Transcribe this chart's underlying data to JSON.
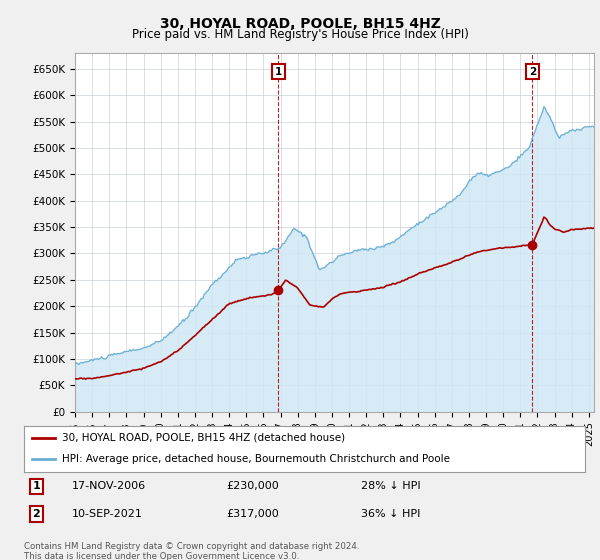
{
  "title": "30, HOYAL ROAD, POOLE, BH15 4HZ",
  "subtitle": "Price paid vs. HM Land Registry's House Price Index (HPI)",
  "ylabel_ticks": [
    "£0",
    "£50K",
    "£100K",
    "£150K",
    "£200K",
    "£250K",
    "£300K",
    "£350K",
    "£400K",
    "£450K",
    "£500K",
    "£550K",
    "£600K",
    "£650K"
  ],
  "ylim": [
    0,
    680000
  ],
  "ytick_values": [
    0,
    50000,
    100000,
    150000,
    200000,
    250000,
    300000,
    350000,
    400000,
    450000,
    500000,
    550000,
    600000,
    650000
  ],
  "hpi_color": "#6aaed6",
  "hpi_fill_color": "#d0e8f5",
  "price_color": "#aa0000",
  "sale1_price": 230000,
  "sale2_price": 317000,
  "sale1_date_str": "17-NOV-2006",
  "sale2_date_str": "10-SEP-2021",
  "sale1_hpi_pct": "28% ↓ HPI",
  "sale2_hpi_pct": "36% ↓ HPI",
  "legend_line1": "30, HOYAL ROAD, POOLE, BH15 4HZ (detached house)",
  "legend_line2": "HPI: Average price, detached house, Bournemouth Christchurch and Poole",
  "footer": "Contains HM Land Registry data © Crown copyright and database right 2024.\nThis data is licensed under the Open Government Licence v3.0.",
  "background_color": "#f0f0f0",
  "plot_bg_color": "#ffffff",
  "grid_color": "#c8d0d8"
}
